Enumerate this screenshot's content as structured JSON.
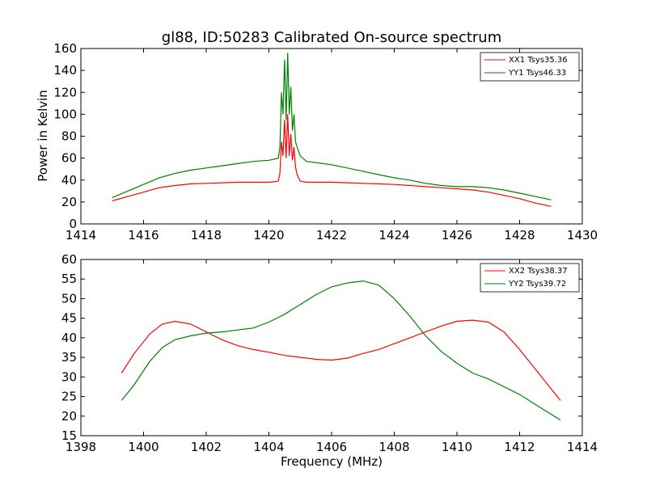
{
  "chart_data": [
    {
      "type": "line",
      "title": "gl88, ID:50283 Calibrated On-source spectrum",
      "xlabel": "",
      "ylabel": "Power in Kelvin",
      "xlim": [
        1414,
        1430
      ],
      "ylim": [
        0,
        160
      ],
      "xticks": [
        "1414",
        "1416",
        "1418",
        "1420",
        "1422",
        "1424",
        "1426",
        "1428",
        "1430"
      ],
      "yticks": [
        "0",
        "20",
        "40",
        "60",
        "80",
        "100",
        "120",
        "140",
        "160"
      ],
      "legend_position": "top-right",
      "series": [
        {
          "name": "XX1 Tsys35.36",
          "color": "#ff0000",
          "x": [
            1415,
            1415.5,
            1416,
            1416.5,
            1417,
            1417.5,
            1418,
            1418.5,
            1419,
            1419.5,
            1420,
            1420.3,
            1420.35,
            1420.4,
            1420.45,
            1420.5,
            1420.55,
            1420.6,
            1420.65,
            1420.7,
            1420.75,
            1420.8,
            1420.85,
            1420.9,
            1421,
            1421.2,
            1421.5,
            1422,
            1422.5,
            1423,
            1423.5,
            1424,
            1424.5,
            1425,
            1425.5,
            1426,
            1426.5,
            1427,
            1427.5,
            1428,
            1428.5,
            1429
          ],
          "y": [
            21,
            25,
            29,
            33,
            35,
            36.5,
            37,
            37.5,
            38,
            38,
            38,
            39,
            46,
            75,
            62,
            95,
            60,
            100,
            62,
            82,
            58,
            70,
            52,
            45,
            39,
            38,
            38,
            38,
            37.5,
            37,
            36.5,
            36,
            35,
            34,
            33,
            32,
            31,
            29,
            26,
            23,
            19,
            16
          ]
        },
        {
          "name": "YY1 Tsys46.33",
          "color": "#008000",
          "x": [
            1415,
            1415.5,
            1416,
            1416.5,
            1417,
            1417.5,
            1418,
            1418.5,
            1419,
            1419.5,
            1420,
            1420.3,
            1420.35,
            1420.4,
            1420.45,
            1420.5,
            1420.55,
            1420.6,
            1420.65,
            1420.7,
            1420.75,
            1420.8,
            1420.85,
            1420.9,
            1421,
            1421.2,
            1421.5,
            1422,
            1422.5,
            1423,
            1423.5,
            1424,
            1424.5,
            1425,
            1425.5,
            1426,
            1426.5,
            1427,
            1427.5,
            1428,
            1428.5,
            1429
          ],
          "y": [
            24,
            30,
            36,
            42,
            46,
            49,
            51,
            53,
            55,
            57,
            58,
            60,
            70,
            120,
            100,
            150,
            95,
            156,
            100,
            125,
            85,
            100,
            75,
            70,
            62,
            57,
            56,
            54,
            51,
            48,
            45,
            42,
            40,
            37,
            35,
            34,
            34,
            33,
            31,
            28,
            25,
            22
          ]
        }
      ]
    },
    {
      "type": "line",
      "title": "",
      "xlabel": "Frequency (MHz)",
      "ylabel": "",
      "xlim": [
        1398,
        1414
      ],
      "ylim": [
        15,
        60
      ],
      "xticks": [
        "1398",
        "1400",
        "1402",
        "1404",
        "1406",
        "1408",
        "1410",
        "1412",
        "1414"
      ],
      "yticks": [
        "15",
        "20",
        "25",
        "30",
        "35",
        "40",
        "45",
        "50",
        "55",
        "60"
      ],
      "legend_position": "top-right",
      "series": [
        {
          "name": "XX2 Tsys38.37",
          "color": "#ff0000",
          "x": [
            1399.3,
            1399.7,
            1400.2,
            1400.6,
            1401,
            1401.5,
            1402,
            1402.5,
            1403,
            1403.5,
            1404,
            1404.5,
            1405,
            1405.5,
            1406,
            1406.5,
            1407,
            1407.5,
            1408,
            1408.5,
            1409,
            1409.5,
            1410,
            1410.5,
            1411,
            1411.5,
            1412,
            1412.5,
            1413,
            1413.3
          ],
          "y": [
            31,
            36,
            41,
            43.5,
            44.2,
            43.5,
            41.5,
            39.5,
            38,
            37,
            36.3,
            35.5,
            35,
            34.5,
            34.3,
            34.8,
            36,
            37,
            38.5,
            40,
            41.5,
            43,
            44.2,
            44.5,
            44,
            41.5,
            37,
            32,
            27,
            24
          ]
        },
        {
          "name": "YY2 Tsys39.72",
          "color": "#008000",
          "x": [
            1399.3,
            1399.7,
            1400.2,
            1400.6,
            1401,
            1401.5,
            1402,
            1402.5,
            1403,
            1403.5,
            1404,
            1404.5,
            1405,
            1405.5,
            1406,
            1406.5,
            1407,
            1407.5,
            1408,
            1408.5,
            1409,
            1409.5,
            1410,
            1410.5,
            1411,
            1411.5,
            1412,
            1412.5,
            1413,
            1413.3
          ],
          "y": [
            24,
            28,
            34,
            37.5,
            39.5,
            40.5,
            41.2,
            41.5,
            42,
            42.5,
            44,
            46,
            48.5,
            51,
            53,
            54,
            54.5,
            53.5,
            50,
            45.5,
            40.5,
            36.5,
            33.5,
            31,
            29.5,
            27.5,
            25.5,
            23,
            20.5,
            19
          ]
        }
      ]
    }
  ]
}
